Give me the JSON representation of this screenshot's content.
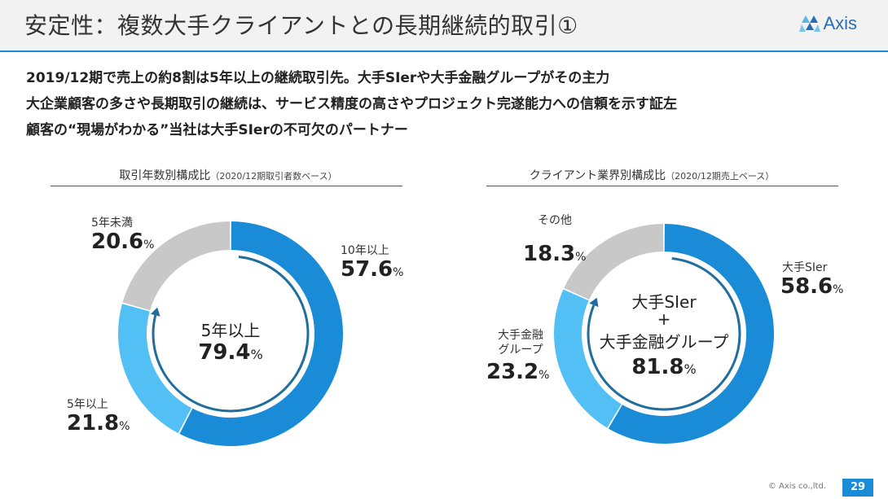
{
  "header": {
    "title": "安定性：複数大手クライアントとの長期継続的取引①",
    "logo_text": "Axis"
  },
  "bullets": [
    "2019/12期で売上の約8割は5年以上の継続取引先。大手SIerや大手金融グループがその主力",
    "大企業顧客の多さや長期取引の継続は、サービス精度の高さやプロジェクト完遂能力への信頼を示す証左",
    "顧客の“現場がわかる”当社は大手SIerの不可欠のパートナー"
  ],
  "colors": {
    "dark_blue": "#1a8bd6",
    "light_blue": "#52bff5",
    "gray": "#c8c8c8",
    "arrow": "#1f6e9e"
  },
  "chart_data": [
    {
      "type": "pie",
      "title": "取引年数別構成比",
      "subtitle": "（2020/12期取引者数ベース）",
      "slices": [
        {
          "label": "10年以上",
          "value": 57.6,
          "display": "57.6",
          "color": "#1a8bd6"
        },
        {
          "label": "5年以上",
          "value": 21.8,
          "display": "21.8",
          "color": "#52bff5"
        },
        {
          "label": "5年未満",
          "value": 20.6,
          "display": "20.6",
          "color": "#c8c8c8"
        }
      ],
      "center": {
        "label": "5年以上",
        "value": "79.4"
      }
    },
    {
      "type": "pie",
      "title": "クライアント業界別構成比",
      "subtitle": "（2020/12期売上ベース）",
      "slices": [
        {
          "label": "大手SIer",
          "value": 58.6,
          "display": "58.6",
          "color": "#1a8bd6"
        },
        {
          "label": "大手金融\nグループ",
          "value": 23.2,
          "display": "23.2",
          "color": "#52bff5"
        },
        {
          "label": "その他",
          "value": 18.3,
          "display": "18.3",
          "color": "#c8c8c8"
        }
      ],
      "center": {
        "label_line1": "大手SIer",
        "label_line2": "+",
        "label_line3": "大手金融グループ",
        "value": "81.8"
      }
    }
  ],
  "percent_sign": "%",
  "footer": {
    "copyright": "© Axis co.,ltd.",
    "page": "29"
  }
}
